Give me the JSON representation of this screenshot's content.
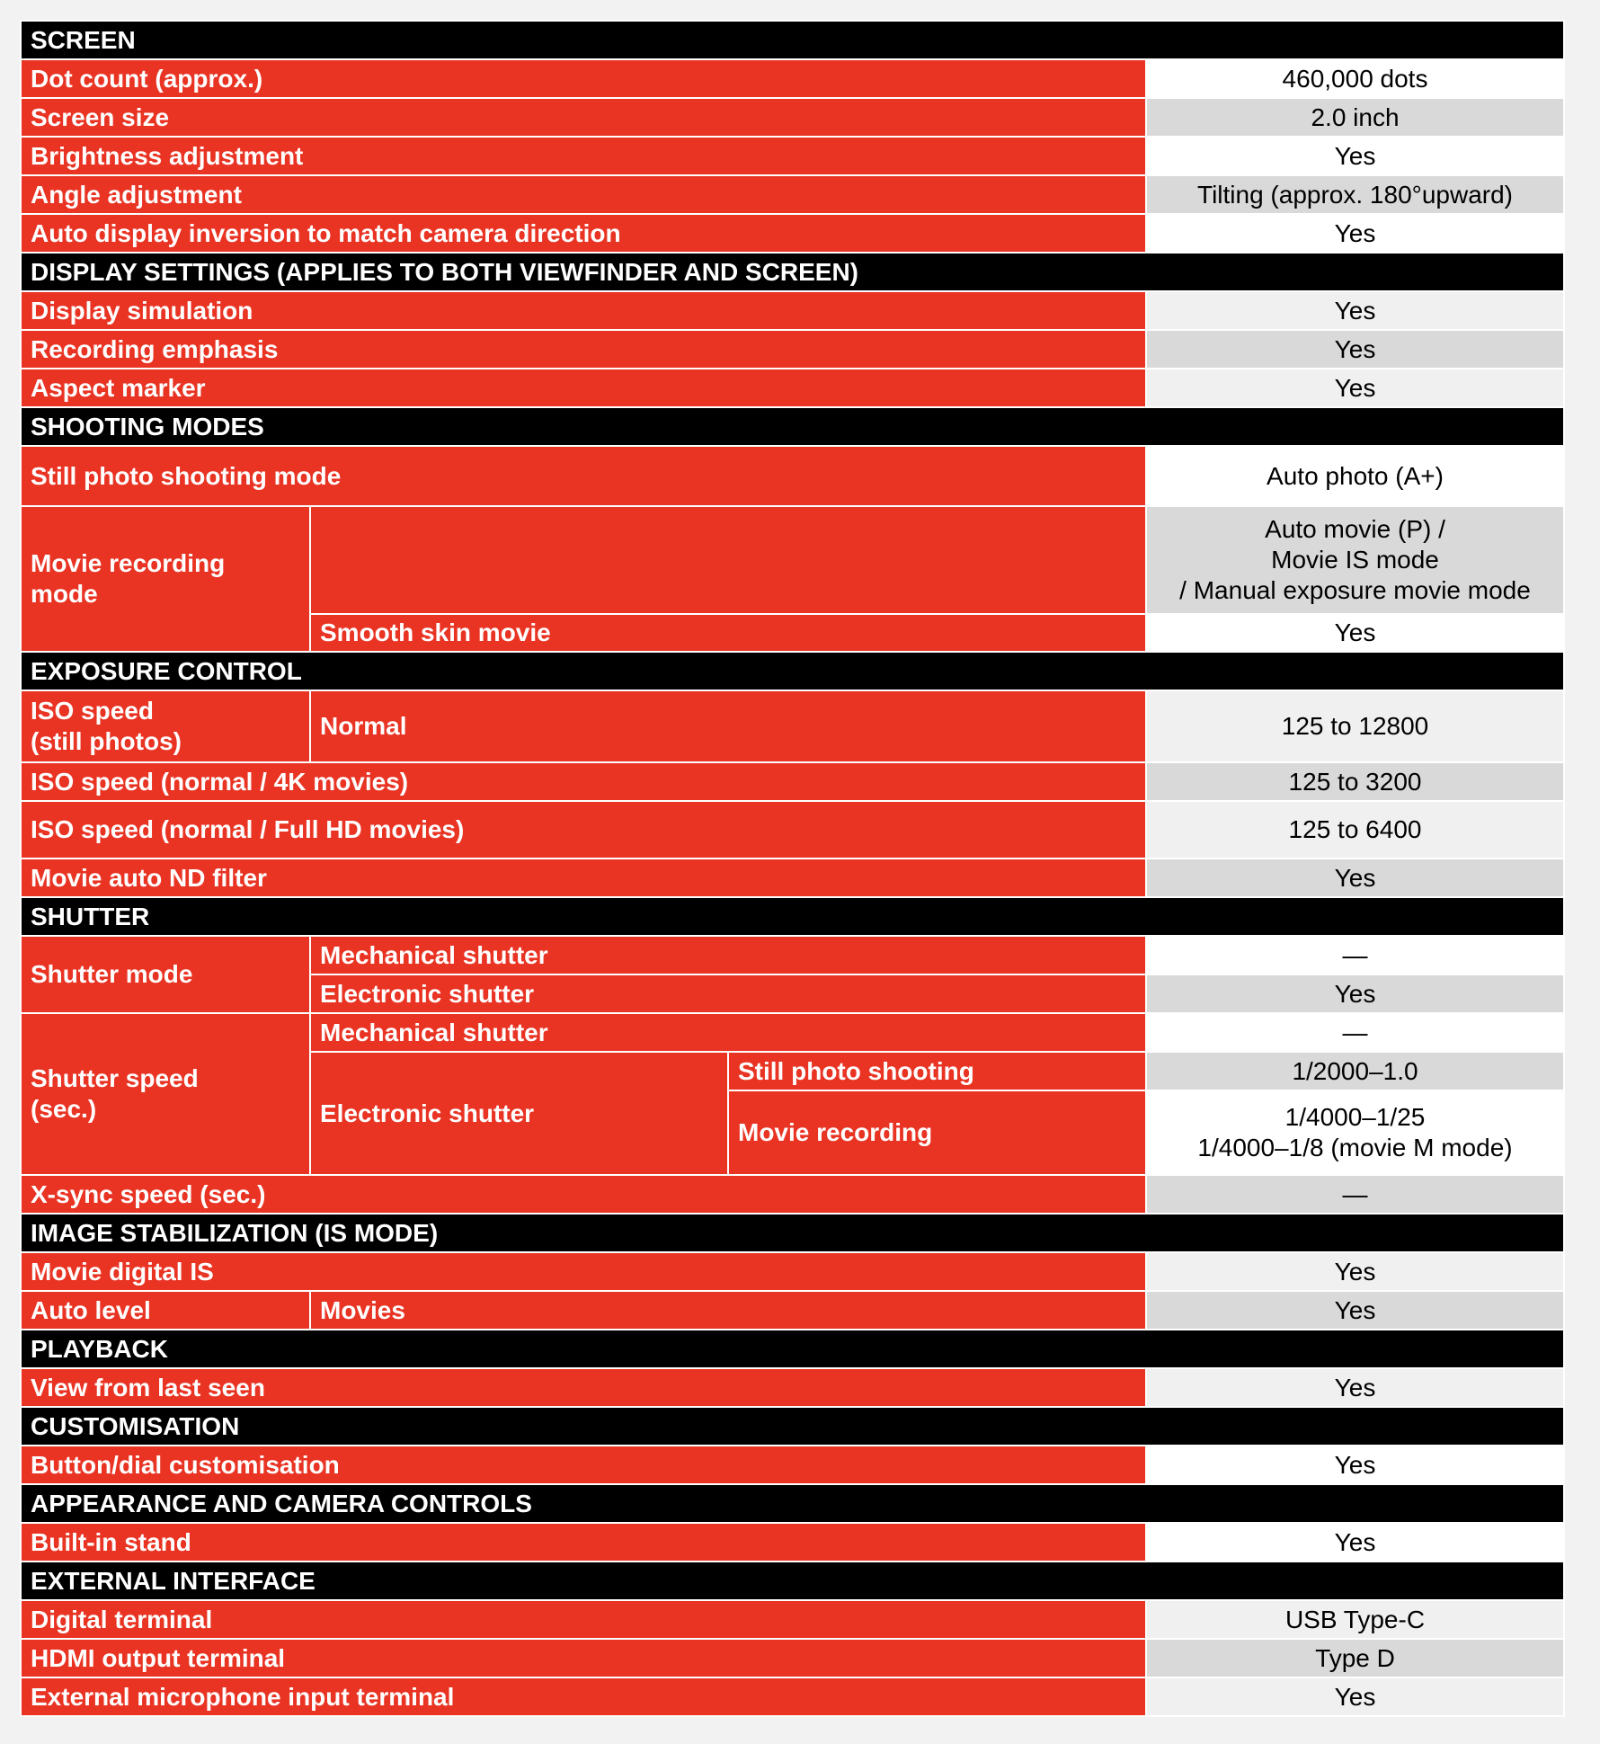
{
  "sections": [
    {
      "title": "SCREEN",
      "rows": [
        {
          "label": "Dot count (approx.)",
          "value": "460,000 dots"
        },
        {
          "label": "Screen size",
          "value": "2.0 inch"
        },
        {
          "label": "Brightness adjustment",
          "value": "Yes"
        },
        {
          "label": "Angle adjustment",
          "value": "Tilting (approx. 180°upward)"
        },
        {
          "label": "Auto display inversion to match camera direction",
          "value": "Yes"
        }
      ]
    },
    {
      "title": "DISPLAY SETTINGS (APPLIES TO BOTH VIEWFINDER AND SCREEN)",
      "rows": [
        {
          "label": "Display simulation",
          "value": "Yes"
        },
        {
          "label": "Recording emphasis",
          "value": "Yes"
        },
        {
          "label": "Aspect marker",
          "value": "Yes"
        }
      ]
    },
    {
      "title": "SHOOTING MODES",
      "rows": [
        {
          "label": "Still photo shooting mode",
          "value": "Auto photo (A+)"
        },
        {
          "label_lines": [
            "Movie recording",
            "mode"
          ],
          "sub": "",
          "value_lines": [
            "Auto movie (P) /",
            "Movie IS mode",
            "/ Manual exposure movie mode"
          ]
        },
        {
          "sub": "Smooth skin movie",
          "value": "Yes"
        }
      ]
    },
    {
      "title": "EXPOSURE CONTROL",
      "rows": [
        {
          "label_lines": [
            "ISO speed",
            "(still photos)"
          ],
          "sub": "Normal",
          "value": "125 to 12800"
        },
        {
          "label": "ISO speed (normal / 4K movies)",
          "value": "125 to 3200"
        },
        {
          "label": "ISO speed (normal / Full HD movies)",
          "value": "125 to 6400"
        },
        {
          "label": "Movie auto ND filter",
          "value": "Yes"
        }
      ]
    },
    {
      "title": "SHUTTER",
      "rows": [
        {
          "label": "Shutter mode",
          "sub": "Mechanical shutter",
          "value": "—"
        },
        {
          "sub": "Electronic shutter",
          "value": "Yes"
        },
        {
          "label_lines": [
            "Shutter speed",
            "(sec.)"
          ],
          "sub": "Mechanical shutter",
          "value": "—"
        },
        {
          "sub": "Electronic shutter",
          "subsub": "Still photo shooting",
          "value": "1/2000–1.0"
        },
        {
          "subsub": "Movie recording",
          "value_lines": [
            "1/4000–1/25",
            "1/4000–1/8 (movie M mode)"
          ]
        },
        {
          "label": "X-sync speed (sec.)",
          "value": "—"
        }
      ]
    },
    {
      "title": "IMAGE STABILIZATION (IS MODE)",
      "rows": [
        {
          "label": "Movie digital IS",
          "value": "Yes"
        },
        {
          "label": "Auto level",
          "sub": "Movies",
          "value": "Yes"
        }
      ]
    },
    {
      "title": "PLAYBACK",
      "rows": [
        {
          "label": "View from last seen",
          "value": "Yes"
        }
      ]
    },
    {
      "title": "CUSTOMISATION",
      "rows": [
        {
          "label": "Button/dial customisation",
          "value": "Yes"
        }
      ]
    },
    {
      "title": "APPEARANCE AND CAMERA CONTROLS",
      "rows": [
        {
          "label": "Built-in stand",
          "value": "Yes"
        }
      ]
    },
    {
      "title": "EXTERNAL INTERFACE",
      "rows": [
        {
          "label": "Digital terminal",
          "value": "USB Type-C"
        },
        {
          "label": "HDMI output terminal",
          "value": "Type D"
        },
        {
          "label": "External microphone input terminal",
          "value": "Yes"
        }
      ]
    }
  ]
}
